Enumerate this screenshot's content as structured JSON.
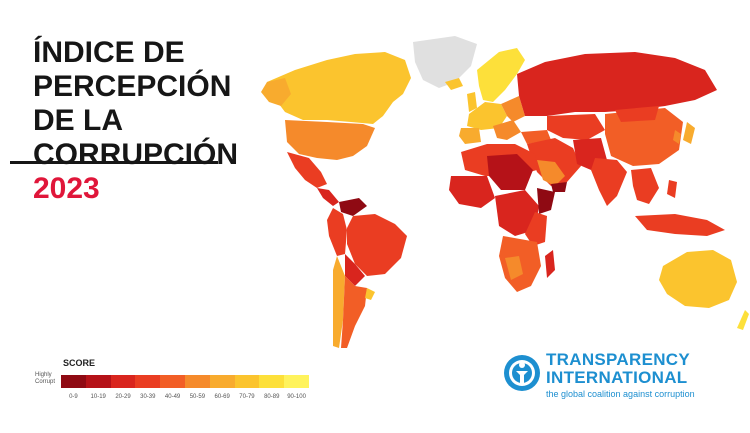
{
  "title": {
    "line1": "ÍNDICE DE",
    "line2": "PERCEPCIÓN DE LA",
    "line3": "CORRUPCIÓN",
    "year": "2023"
  },
  "legend": {
    "title": "SCORE",
    "low_label_1": "Highly",
    "low_label_2": "Corrupt",
    "ranges": [
      "0-9",
      "10-19",
      "20-29",
      "30-39",
      "40-49",
      "50-59",
      "60-69",
      "70-79",
      "80-89",
      "90-100"
    ],
    "colors": [
      "#8f0a13",
      "#b51218",
      "#d9251e",
      "#ea3d22",
      "#f25e26",
      "#f58a2b",
      "#f8ab2e",
      "#fbc42e",
      "#fde03a",
      "#fff35c"
    ]
  },
  "organization": {
    "name_1": "TRANSPARENCY",
    "name_2": "INTERNATIONAL",
    "tagline": "the global coalition against corruption",
    "color": "#1d8fd0"
  },
  "map": {
    "no_data_color": "#e0e0e0"
  }
}
